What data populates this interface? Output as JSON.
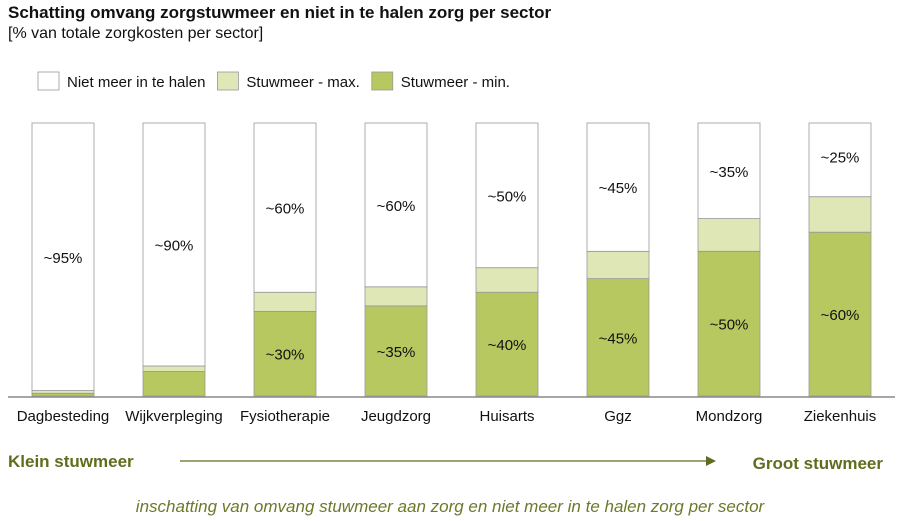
{
  "title": "Schatting omvang zorgstuwmeer en niet in te halen zorg per sector",
  "subtitle": "[% van totale zorgkosten per sector]",
  "footer": "inschatting van omvang stuwmeer aan zorg en niet meer in te halen zorg per sector",
  "arrow": {
    "left_label": "Klein stuwmeer",
    "right_label": "Groot stuwmeer",
    "color": "#5e6e1e"
  },
  "chart_data": {
    "type": "bar",
    "stacked": true,
    "ylim": [
      0,
      100
    ],
    "grid": false,
    "legend_placement": "top-left",
    "categories": [
      "Dagbesteding",
      "Wijkverpleging",
      "Fysiotherapie",
      "Jeugdzorg",
      "Huisarts",
      "Ggz",
      "Mondzorg",
      "Ziekenhuis"
    ],
    "series": [
      {
        "name": "Stuwmeer - min.",
        "color": "#b6c85f",
        "values": [
          1,
          9,
          31,
          33,
          38,
          43,
          53,
          60
        ],
        "labels": [
          "",
          "",
          "~30%",
          "~35%",
          "~40%",
          "~45%",
          "~50%",
          "~60%"
        ]
      },
      {
        "name": "Stuwmeer - max.",
        "color": "#dee7b5",
        "values": [
          1,
          2,
          7,
          7,
          9,
          10,
          12,
          13
        ],
        "labels": [
          "",
          "",
          "",
          "",
          "",
          "",
          "",
          ""
        ]
      },
      {
        "name": "Niet meer in te halen",
        "color": "#ffffff",
        "values": [
          98,
          89,
          62,
          60,
          53,
          47,
          35,
          27
        ],
        "labels": [
          "~95%",
          "~90%",
          "~60%",
          "~60%",
          "~50%",
          "~45%",
          "~35%",
          "~25%"
        ]
      }
    ],
    "legend_order": [
      "Niet meer in te halen",
      "Stuwmeer - max.",
      "Stuwmeer - min."
    ]
  }
}
